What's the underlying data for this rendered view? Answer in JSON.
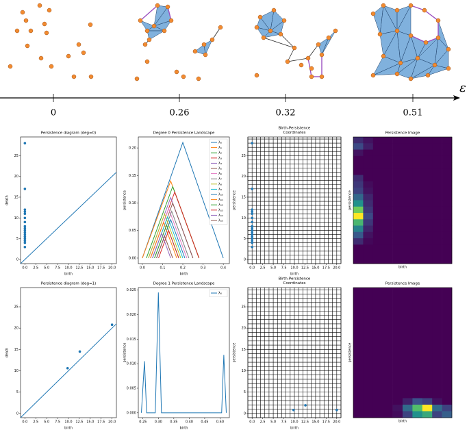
{
  "filtration": {
    "axis_label": "ε",
    "ticks": [
      "0",
      "0.26",
      "0.32",
      "0.51"
    ]
  },
  "chart_data": [
    {
      "type": "scatter",
      "title": "Persistence diagram (deg=0)",
      "xlabel": "birth",
      "ylabel": "death",
      "x": [
        0,
        0,
        0,
        0,
        0,
        0,
        0,
        0,
        0,
        0,
        0,
        0,
        0,
        0,
        0,
        0,
        0
      ],
      "values": [
        28,
        17,
        12,
        11.5,
        11,
        10,
        9,
        8,
        7.5,
        7,
        6.5,
        6,
        5.5,
        5,
        4.5,
        4,
        3
      ],
      "color": "#1f77b4",
      "diagonal": true,
      "grid": false,
      "xlim": [
        -1,
        21
      ],
      "ylim": [
        -1,
        29.5
      ],
      "xticks": [
        {
          "value": 0,
          "label": "0.0"
        },
        2.5,
        {
          "value": 5,
          "label": "5.0"
        },
        7.5,
        {
          "value": 10,
          "label": "10.0"
        },
        12.5,
        {
          "value": 15,
          "label": "15.0"
        },
        17.5,
        {
          "value": 20,
          "label": "20.0"
        }
      ],
      "yticks": [
        0,
        5,
        10,
        15,
        20,
        25
      ]
    },
    {
      "type": "line",
      "title": "Degree 0 Persistence Landscape",
      "xlabel": "birth",
      "ylabel": "persistence",
      "legend": "upper right",
      "series": [
        {
          "name": "λ₀",
          "color": "#1f77b4",
          "x": [
            0,
            0.2,
            0.4
          ],
          "values": [
            0,
            0.21,
            0
          ]
        },
        {
          "name": "λ₁",
          "color": "#ff7f0e",
          "x": [
            0,
            0.14,
            0.28
          ],
          "values": [
            0,
            0.14,
            0
          ]
        },
        {
          "name": "λ₂",
          "color": "#2ca02c",
          "x": [
            0.02,
            0.15,
            0.28
          ],
          "values": [
            0,
            0.13,
            0
          ]
        },
        {
          "name": "λ₃",
          "color": "#d62728",
          "x": [
            0.04,
            0.16,
            0.28
          ],
          "values": [
            0,
            0.12,
            0
          ]
        },
        {
          "name": "λ₄",
          "color": "#9467bd",
          "x": [
            0.03,
            0.14,
            0.25
          ],
          "values": [
            0,
            0.11,
            0
          ]
        },
        {
          "name": "λ₅",
          "color": "#8c564b",
          "x": [
            0.05,
            0.15,
            0.25
          ],
          "values": [
            0,
            0.1,
            0
          ]
        },
        {
          "name": "λ₆",
          "color": "#e377c2",
          "x": [
            0.04,
            0.13,
            0.22
          ],
          "values": [
            0,
            0.09,
            0
          ]
        },
        {
          "name": "λ₇",
          "color": "#7f7f7f",
          "x": [
            0.06,
            0.145,
            0.23
          ],
          "values": [
            0,
            0.085,
            0
          ]
        },
        {
          "name": "λ₈",
          "color": "#bcbd22",
          "x": [
            0.03,
            0.11,
            0.19
          ],
          "values": [
            0,
            0.08,
            0
          ]
        },
        {
          "name": "λ₉",
          "color": "#17becf",
          "x": [
            0.05,
            0.125,
            0.2
          ],
          "values": [
            0,
            0.075,
            0
          ]
        },
        {
          "name": "λ₁₀",
          "color": "#1f77b4",
          "x": [
            0.07,
            0.14,
            0.21
          ],
          "values": [
            0,
            0.07,
            0
          ]
        },
        {
          "name": "λ₁₁",
          "color": "#ff7f0e",
          "x": [
            0.04,
            0.105,
            0.17
          ],
          "values": [
            0,
            0.065,
            0
          ]
        },
        {
          "name": "λ₁₂",
          "color": "#2ca02c",
          "x": [
            0.06,
            0.12,
            0.18
          ],
          "values": [
            0,
            0.06,
            0
          ]
        },
        {
          "name": "λ₁₃",
          "color": "#d62728",
          "x": [
            0.08,
            0.13,
            0.18
          ],
          "values": [
            0,
            0.05,
            0
          ]
        },
        {
          "name": "λ₁₄",
          "color": "#9467bd",
          "x": [
            0.05,
            0.095,
            0.14
          ],
          "values": [
            0,
            0.045,
            0
          ]
        },
        {
          "name": "λ₁₅",
          "color": "#8c564b",
          "x": [
            0.07,
            0.11,
            0.15
          ],
          "values": [
            0,
            0.04,
            0
          ]
        }
      ],
      "xlim": [
        -0.02,
        0.43
      ],
      "ylim": [
        -0.01,
        0.22
      ],
      "xticks": [
        {
          "value": 0,
          "label": "0.0"
        },
        0.1,
        0.2,
        0.3,
        0.4
      ],
      "yticks": [
        {
          "value": 0,
          "label": "0.00"
        },
        0.05,
        {
          "value": 0.1,
          "label": "0.10"
        },
        0.15,
        {
          "value": 0.2,
          "label": "0.20"
        }
      ]
    },
    {
      "type": "scatter",
      "title": [
        "Birth-Persistence",
        "Coordinates"
      ],
      "xlabel": "birth",
      "ylabel": "persistence",
      "x": [
        0,
        0,
        0,
        0,
        0,
        0,
        0,
        0,
        0,
        0,
        0,
        0,
        0,
        0,
        0,
        0,
        0
      ],
      "values": [
        28,
        17,
        12,
        11.5,
        11,
        10,
        9,
        8,
        7.5,
        7,
        6.5,
        6,
        5.5,
        5,
        4.5,
        4,
        3
      ],
      "color": "#1f77b4",
      "diagonal": false,
      "grid": true,
      "xlim": [
        -1,
        21
      ],
      "ylim": [
        -1,
        29.5
      ],
      "xticks": [
        {
          "value": 0,
          "label": "0.0"
        },
        2.5,
        {
          "value": 5,
          "label": "5.0"
        },
        7.5,
        {
          "value": 10,
          "label": "10.0"
        },
        12.5,
        {
          "value": 15,
          "label": "15.0"
        },
        17.5,
        {
          "value": 20,
          "label": "20.0"
        }
      ],
      "yticks": [
        0,
        5,
        10,
        15,
        20,
        25
      ]
    },
    {
      "type": "heatmap",
      "title": "Persistence Image",
      "xlabel": "birth",
      "ylabel": "persistence",
      "colormap": "viridis",
      "values": [
        [
          0.12,
          0.05,
          0,
          0,
          0,
          0,
          0,
          0,
          0,
          0
        ],
        [
          0.2,
          0.08,
          0,
          0,
          0,
          0,
          0,
          0,
          0,
          0
        ],
        [
          0.05,
          0,
          0,
          0,
          0,
          0,
          0,
          0,
          0,
          0
        ],
        [
          0,
          0,
          0,
          0,
          0,
          0,
          0,
          0,
          0,
          0
        ],
        [
          0,
          0,
          0,
          0,
          0,
          0,
          0,
          0,
          0,
          0
        ],
        [
          0,
          0,
          0,
          0,
          0,
          0,
          0,
          0,
          0,
          0
        ],
        [
          0.12,
          0,
          0,
          0,
          0,
          0,
          0,
          0,
          0,
          0
        ],
        [
          0.15,
          0.03,
          0,
          0,
          0,
          0,
          0,
          0,
          0,
          0
        ],
        [
          0.18,
          0.05,
          0,
          0,
          0,
          0,
          0,
          0,
          0,
          0
        ],
        [
          0.3,
          0.1,
          0,
          0,
          0,
          0,
          0,
          0,
          0,
          0
        ],
        [
          0.45,
          0.12,
          0,
          0,
          0,
          0,
          0,
          0,
          0,
          0
        ],
        [
          0.7,
          0.15,
          0,
          0,
          0,
          0,
          0,
          0,
          0,
          0
        ],
        [
          0.9,
          0.2,
          0,
          0,
          0,
          0,
          0,
          0,
          0,
          0
        ],
        [
          0.6,
          0.15,
          0,
          0,
          0,
          0,
          0,
          0,
          0,
          0
        ],
        [
          0.4,
          0.1,
          0,
          0,
          0,
          0,
          0,
          0,
          0,
          0
        ],
        [
          0.25,
          0.05,
          0,
          0,
          0,
          0,
          0,
          0,
          0,
          0
        ],
        [
          0.12,
          0.02,
          0,
          0,
          0,
          0,
          0,
          0,
          0,
          0
        ],
        [
          0,
          0,
          0,
          0,
          0,
          0,
          0,
          0,
          0,
          0
        ],
        [
          0,
          0,
          0,
          0,
          0,
          0,
          0,
          0,
          0,
          0
        ],
        [
          0,
          0,
          0,
          0,
          0,
          0,
          0,
          0,
          0,
          0
        ]
      ]
    },
    {
      "type": "scatter",
      "title": "Persistence diagram (deg=1)",
      "xlabel": "birth",
      "ylabel": "death",
      "x": [
        9.8,
        12.6,
        20
      ],
      "values": [
        10.6,
        14.5,
        20.8
      ],
      "color": "#1f77b4",
      "diagonal": true,
      "grid": false,
      "xlim": [
        -1,
        21
      ],
      "ylim": [
        -1,
        29.5
      ],
      "xticks": [
        {
          "value": 0,
          "label": "0.0"
        },
        2.5,
        {
          "value": 5,
          "label": "5.0"
        },
        7.5,
        {
          "value": 10,
          "label": "10.0"
        },
        12.5,
        {
          "value": 15,
          "label": "15.0"
        },
        17.5,
        {
          "value": 20,
          "label": "20.0"
        }
      ],
      "yticks": [
        0,
        5,
        10,
        15,
        20,
        25
      ]
    },
    {
      "type": "line",
      "title": "Degree 1 Persistence Landscape",
      "xlabel": "birth",
      "ylabel": "persistence",
      "legend": "upper right",
      "series": [
        {
          "name": "λ₀",
          "color": "#1f77b4",
          "x": [
            0.245,
            0.255,
            0.262,
            0.29,
            0.3,
            0.31,
            0.505,
            0.512,
            0.52
          ],
          "values": [
            0,
            0.0105,
            0,
            0,
            0.0245,
            0,
            0,
            0.0118,
            0
          ]
        }
      ],
      "xlim": [
        0.235,
        0.53
      ],
      "ylim": [
        -0.001,
        0.0255
      ],
      "xticks": [
        0.25,
        {
          "value": 0.3,
          "label": "0.30"
        },
        0.35,
        {
          "value": 0.4,
          "label": "0.40"
        },
        0.45,
        {
          "value": 0.5,
          "label": "0.50"
        }
      ],
      "yticks": [
        {
          "value": 0,
          "label": "0.000"
        },
        0.005,
        {
          "value": 0.01,
          "label": "0.010"
        },
        0.015,
        {
          "value": 0.02,
          "label": "0.020"
        },
        0.025
      ]
    },
    {
      "type": "scatter",
      "title": [
        "Birth-Persistence",
        "Coordinates"
      ],
      "xlabel": "birth",
      "ylabel": "persistence",
      "x": [
        9.8,
        12.6,
        20
      ],
      "values": [
        0.8,
        1.9,
        0.8
      ],
      "color": "#1f77b4",
      "diagonal": false,
      "grid": true,
      "xlim": [
        -1,
        21
      ],
      "ylim": [
        -1,
        29.5
      ],
      "xticks": [
        {
          "value": 0,
          "label": "0.0"
        },
        2.5,
        {
          "value": 5,
          "label": "5.0"
        },
        7.5,
        {
          "value": 10,
          "label": "10.0"
        },
        12.5,
        {
          "value": 15,
          "label": "15.0"
        },
        17.5,
        {
          "value": 20,
          "label": "20.0"
        }
      ],
      "yticks": [
        0,
        5,
        10,
        15,
        20,
        25
      ]
    },
    {
      "type": "heatmap",
      "title": "Persistence Image",
      "xlabel": "birth",
      "ylabel": "persistence",
      "colormap": "viridis",
      "values": [
        [
          0,
          0,
          0,
          0,
          0,
          0,
          0,
          0,
          0,
          0
        ],
        [
          0,
          0,
          0,
          0,
          0,
          0,
          0,
          0,
          0,
          0
        ],
        [
          0,
          0,
          0,
          0,
          0,
          0,
          0,
          0,
          0,
          0
        ],
        [
          0,
          0,
          0,
          0,
          0,
          0,
          0,
          0,
          0,
          0
        ],
        [
          0,
          0,
          0,
          0,
          0,
          0,
          0,
          0,
          0,
          0
        ],
        [
          0,
          0,
          0,
          0,
          0,
          0,
          0,
          0,
          0,
          0
        ],
        [
          0,
          0,
          0,
          0,
          0,
          0,
          0,
          0,
          0,
          0
        ],
        [
          0,
          0,
          0,
          0,
          0,
          0,
          0,
          0,
          0,
          0
        ],
        [
          0,
          0,
          0,
          0,
          0,
          0,
          0,
          0,
          0,
          0
        ],
        [
          0,
          0,
          0,
          0,
          0,
          0,
          0,
          0,
          0,
          0
        ],
        [
          0,
          0,
          0,
          0,
          0,
          0,
          0,
          0,
          0,
          0
        ],
        [
          0,
          0,
          0,
          0,
          0,
          0,
          0,
          0,
          0,
          0
        ],
        [
          0,
          0,
          0,
          0,
          0,
          0,
          0,
          0,
          0,
          0
        ],
        [
          0,
          0,
          0,
          0,
          0,
          0,
          0,
          0,
          0,
          0
        ],
        [
          0,
          0,
          0,
          0,
          0,
          0,
          0,
          0,
          0,
          0
        ],
        [
          0,
          0,
          0,
          0,
          0,
          0,
          0,
          0,
          0,
          0
        ],
        [
          0,
          0,
          0,
          0,
          0,
          0,
          0,
          0,
          0,
          0
        ],
        [
          0,
          0,
          0,
          0,
          0,
          0.1,
          0.25,
          0.2,
          0.05,
          0
        ],
        [
          0,
          0,
          0,
          0,
          0.05,
          0.35,
          0.7,
          1,
          0.35,
          0.2
        ],
        [
          0,
          0,
          0,
          0,
          0.03,
          0.2,
          0.5,
          0.6,
          0.2,
          0.3
        ]
      ]
    }
  ]
}
